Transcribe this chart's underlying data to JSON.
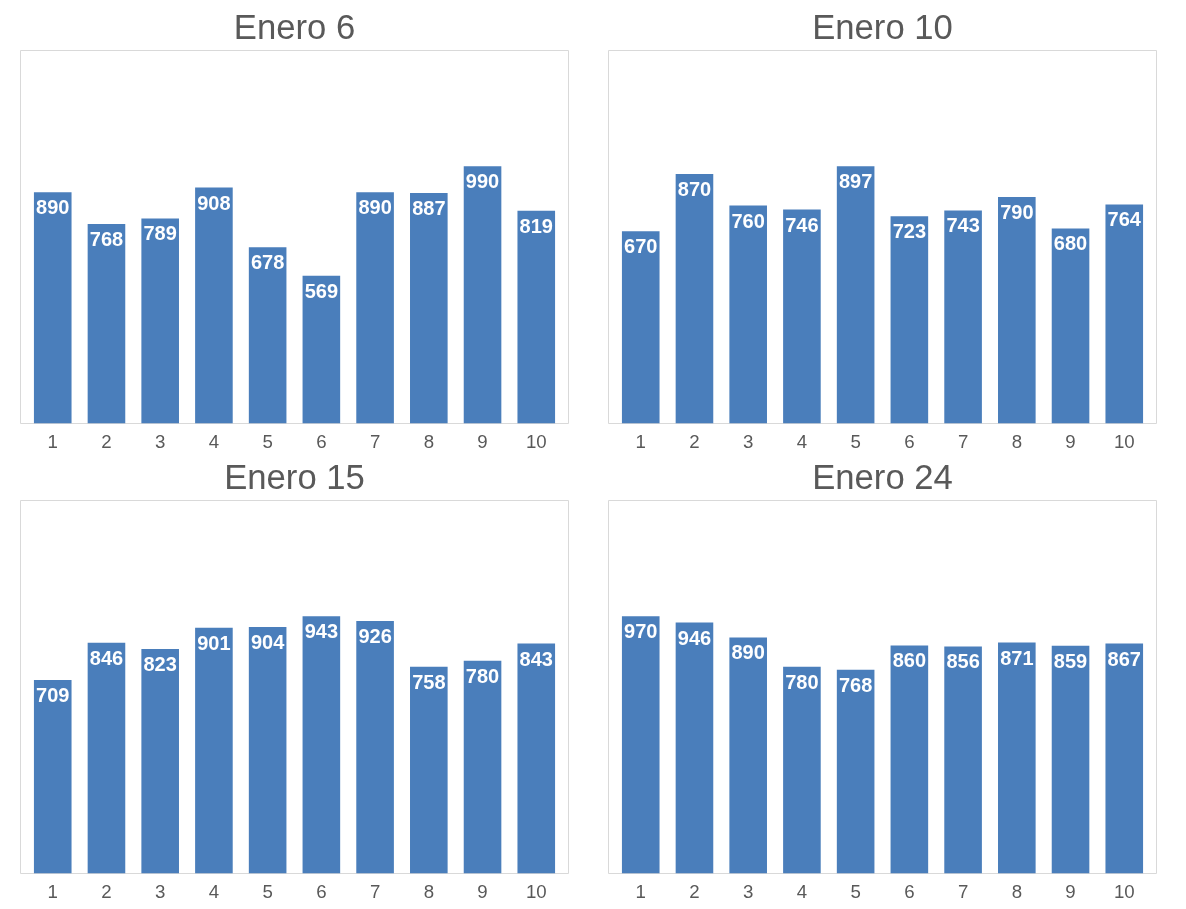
{
  "chart_data": [
    {
      "type": "bar",
      "title": "Enero 6",
      "categories": [
        "1",
        "2",
        "3",
        "4",
        "5",
        "6",
        "7",
        "8",
        "9",
        "10"
      ],
      "values": [
        890,
        768,
        789,
        908,
        678,
        569,
        890,
        887,
        990,
        819
      ],
      "color": "#4a7ebb",
      "data_labels": true,
      "tick_labels": "x",
      "grid": false
    },
    {
      "type": "bar",
      "title": "Enero 10",
      "categories": [
        "1",
        "2",
        "3",
        "4",
        "5",
        "6",
        "7",
        "8",
        "9",
        "10"
      ],
      "values": [
        670,
        870,
        760,
        746,
        897,
        723,
        743,
        790,
        680,
        764
      ],
      "color": "#4a7ebb",
      "data_labels": true,
      "tick_labels": "x",
      "grid": false
    },
    {
      "type": "bar",
      "title": "Enero 15",
      "categories": [
        "1",
        "2",
        "3",
        "4",
        "5",
        "6",
        "7",
        "8",
        "9",
        "10"
      ],
      "values": [
        709,
        846,
        823,
        901,
        904,
        943,
        926,
        758,
        780,
        843
      ],
      "color": "#4a7ebb",
      "data_labels": true,
      "tick_labels": "x",
      "grid": false
    },
    {
      "type": "bar",
      "title": "Enero 24",
      "categories": [
        "1",
        "2",
        "3",
        "4",
        "5",
        "6",
        "7",
        "8",
        "9",
        "10"
      ],
      "values": [
        970,
        946,
        890,
        780,
        768,
        860,
        856,
        871,
        859,
        867
      ],
      "color": "#4a7ebb",
      "data_labels": true,
      "tick_labels": "x",
      "grid": false
    }
  ]
}
